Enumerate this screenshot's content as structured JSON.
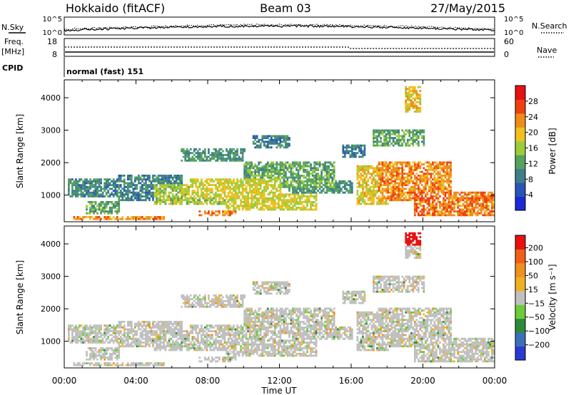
{
  "header": {
    "station": "Hokkaido (fitACF)",
    "beam": "Beam 03",
    "date": "27/May/2015"
  },
  "params": {
    "nsky_label": "N.Sky",
    "nsearch_label": "N.Search",
    "freq_label_1": "Freq.",
    "freq_label_2": "[MHz]",
    "nave_label": "Nave",
    "cpid_label": "CPID",
    "cpid_value": "normal (fast) 151",
    "noise_ticks_left": [
      "10^5",
      "10^0"
    ],
    "noise_ticks_right": [
      "10^5",
      "10^0"
    ],
    "freq_ticks": [
      "18",
      "8"
    ],
    "nave_ticks": [
      "60",
      "0"
    ]
  },
  "chart_data": [
    {
      "type": "heatmap",
      "name": "power",
      "ylabel": "Slant Range [km]",
      "xlabel": "",
      "x_ticks": [
        "00:00",
        "04:00",
        "08:00",
        "12:00",
        "16:00",
        "20:00",
        "00:00"
      ],
      "y_ticks": [
        1000,
        2000,
        3000,
        4000
      ],
      "ylim": [
        180,
        4550
      ],
      "xlim_hours": [
        0,
        24
      ],
      "colorbar": {
        "label": "Power [dB]",
        "ticks": [
          4,
          8,
          12,
          16,
          20,
          24,
          28
        ],
        "range": [
          0,
          32
        ],
        "colors": [
          "#1a2ad8",
          "#2856b8",
          "#3e7f8a",
          "#56a25e",
          "#9ccc3a",
          "#f0c020",
          "#f08c18",
          "#f04010",
          "#e81010"
        ]
      }
    },
    {
      "type": "heatmap",
      "name": "velocity",
      "ylabel": "Slant Range [km]",
      "xlabel": "Time UT",
      "x_ticks": [
        "00:00",
        "04:00",
        "08:00",
        "12:00",
        "16:00",
        "20:00",
        "00:00"
      ],
      "y_ticks": [
        1000,
        2000,
        3000,
        4000
      ],
      "ylim": [
        180,
        4550
      ],
      "xlim_hours": [
        0,
        24
      ],
      "colorbar": {
        "label": "Velocity [m s⁻¹]",
        "ticks": [
          "200",
          "100",
          "50",
          "15",
          "−15",
          "−50",
          "−100",
          "−200"
        ],
        "colors": [
          "#2a3ad0",
          "#3a70b8",
          "#2e8a3a",
          "#6ccc3a",
          "#c0c0c0",
          "#f0b020",
          "#f09020",
          "#f06018",
          "#e81010"
        ]
      }
    }
  ]
}
